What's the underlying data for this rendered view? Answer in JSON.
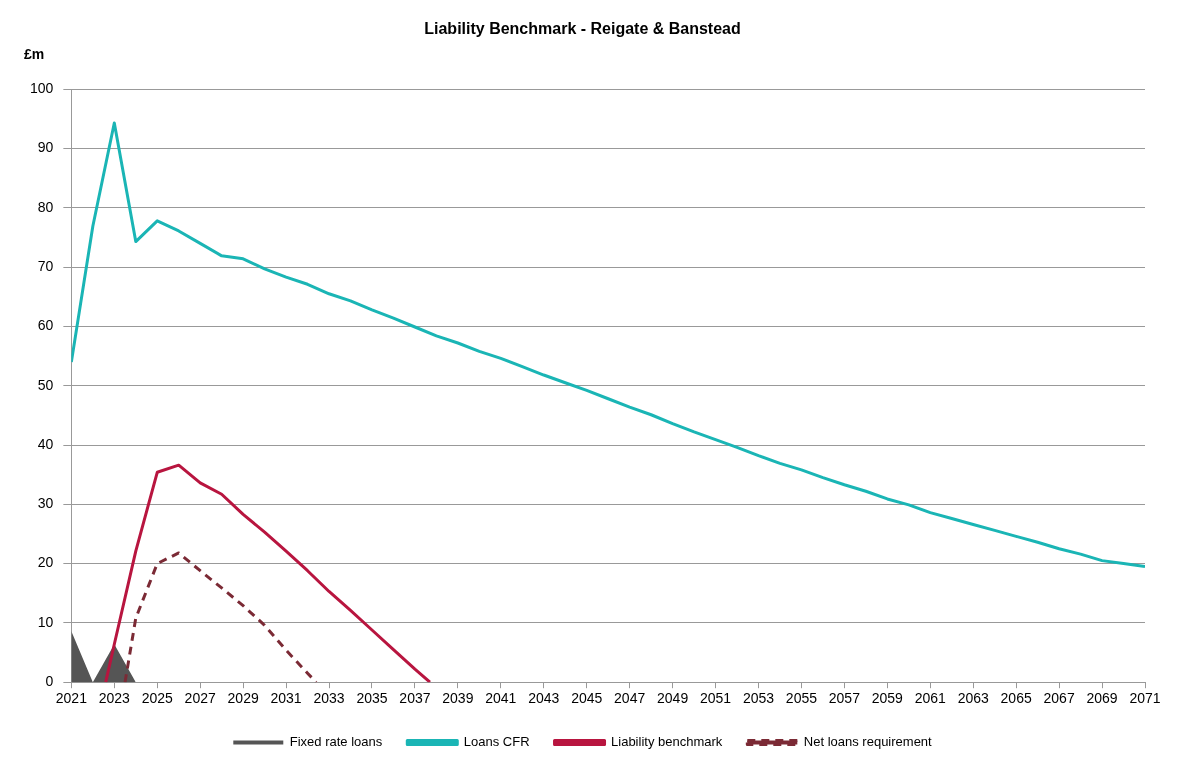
{
  "chart_data": {
    "type": "line",
    "title": "Liability Benchmark - Reigate & Banstead",
    "ylabel": "£m",
    "xlim": [
      2021,
      2071
    ],
    "xticks": [
      2021,
      2023,
      2025,
      2027,
      2029,
      2031,
      2033,
      2035,
      2037,
      2039,
      2041,
      2043,
      2045,
      2047,
      2049,
      2051,
      2053,
      2055,
      2057,
      2059,
      2061,
      2063,
      2065,
      2067,
      2069,
      2071
    ],
    "ylim": [
      0,
      100
    ],
    "yticks": [
      0,
      10,
      20,
      30,
      40,
      50,
      60,
      70,
      80,
      90,
      100
    ],
    "grid": "y",
    "legend": "bottom",
    "marker": "none",
    "series": [
      {
        "name": "Fixed rate loans",
        "type": "area",
        "color": "#555555",
        "x": [
          2021,
          2022,
          2023,
          2024
        ],
        "values": [
          8.6,
          0,
          6.4,
          0
        ]
      },
      {
        "name": "Loans CFR",
        "type": "line",
        "color": "#1ab5b5",
        "line_style": "solid",
        "x": [
          2021,
          2022,
          2023,
          2024,
          2025,
          2026,
          2027,
          2028,
          2029,
          2030,
          2031,
          2032,
          2033,
          2034,
          2035,
          2036,
          2037,
          2038,
          2039,
          2040,
          2041,
          2042,
          2043,
          2044,
          2045,
          2046,
          2047,
          2048,
          2049,
          2050,
          2051,
          2052,
          2053,
          2054,
          2055,
          2056,
          2057,
          2058,
          2059,
          2060,
          2061,
          2062,
          2063,
          2064,
          2065,
          2066,
          2067,
          2068,
          2069,
          2070,
          2071
        ],
        "values": [
          54,
          76.9,
          94.3,
          74.3,
          77.8,
          76.1,
          74,
          71.9,
          71.4,
          69.7,
          68.3,
          67.1,
          65.5,
          64.3,
          62.8,
          61.4,
          59.9,
          58.4,
          57.2,
          55.8,
          54.6,
          53.2,
          51.8,
          50.5,
          49.2,
          47.8,
          46.4,
          45.1,
          43.6,
          42.2,
          40.9,
          39.6,
          38.2,
          36.9,
          35.8,
          34.5,
          33.3,
          32.2,
          30.9,
          29.9,
          28.6,
          27.6,
          26.6,
          25.6,
          24.6,
          23.6,
          22.5,
          21.6,
          20.5,
          20,
          19.5
        ]
      },
      {
        "name": "Liability benchmark",
        "type": "line",
        "color": "#b8153f",
        "line_style": "solid",
        "x": [
          2022.6,
          2023,
          2024,
          2025,
          2026,
          2027,
          2028,
          2029,
          2030,
          2031,
          2032,
          2033,
          2034,
          2035,
          2036,
          2037,
          2037.7
        ],
        "values": [
          0,
          6.4,
          22.1,
          35.4,
          36.6,
          33.6,
          31.7,
          28.3,
          25.3,
          22.1,
          18.8,
          15.3,
          12.1,
          8.8,
          5.5,
          2.2,
          0
        ]
      },
      {
        "name": "Net loans requirement",
        "type": "line",
        "color": "#7b2a35",
        "line_style": "dashed",
        "x": [
          2023.5,
          2024,
          2025,
          2026,
          2027,
          2028,
          2029,
          2030,
          2031,
          2032,
          2032.4
        ],
        "values": [
          0,
          10.8,
          20,
          21.8,
          18.8,
          15.9,
          12.9,
          9.6,
          5.4,
          1.5,
          0
        ]
      }
    ]
  }
}
